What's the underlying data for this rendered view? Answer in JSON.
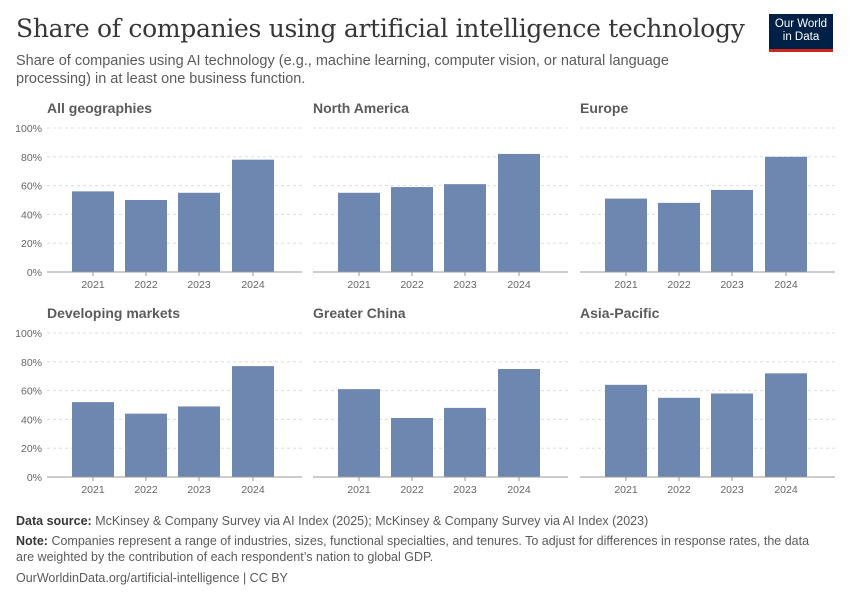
{
  "title": "Share of companies using artificial intelligence technology",
  "subtitle": "Share of companies using AI technology (e.g., machine learning, computer vision, or natural language processing) in at least one business function.",
  "logo": {
    "line1": "Our World",
    "line2": "in Data"
  },
  "footer": {
    "source_label": "Data source:",
    "source": "McKinsey & Company Survey via AI Index (2025); McKinsey & Company Survey via AI Index (2023)",
    "note_label": "Note:",
    "note": "Companies represent a range of industries, sizes, functional specialties, and tenures. To adjust for differences in response rates, the data are weighted by the contribution of each respondent’s nation to global GDP.",
    "url": "OurWorldinData.org/artificial-intelligence | CC BY"
  },
  "chart_data": {
    "type": "bar",
    "categories": [
      "2021",
      "2022",
      "2023",
      "2024"
    ],
    "ylim": [
      0,
      100
    ],
    "yticks": [
      "0%",
      "20%",
      "40%",
      "60%",
      "80%",
      "100%"
    ],
    "grid": true,
    "bar_color": "#6d87b0",
    "panels": [
      {
        "name": "All geographies",
        "values": [
          56,
          50,
          55,
          78
        ]
      },
      {
        "name": "North America",
        "values": [
          55,
          59,
          61,
          82
        ]
      },
      {
        "name": "Europe",
        "values": [
          51,
          48,
          57,
          80
        ]
      },
      {
        "name": "Developing markets",
        "values": [
          52,
          44,
          49,
          77
        ]
      },
      {
        "name": "Greater China",
        "values": [
          61,
          41,
          48,
          75
        ]
      },
      {
        "name": "Asia-Pacific",
        "values": [
          64,
          55,
          58,
          72
        ]
      }
    ]
  }
}
